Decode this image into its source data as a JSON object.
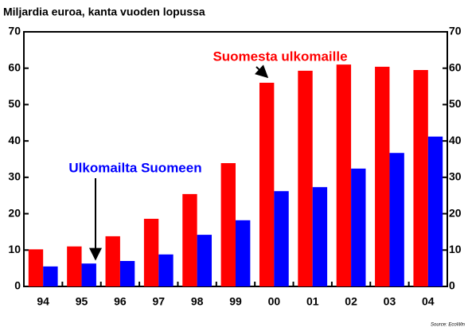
{
  "chart_data": {
    "type": "bar",
    "subtitle": "Miljardia euroa, kanta vuoden lopussa",
    "categories": [
      "94",
      "95",
      "96",
      "97",
      "98",
      "99",
      "00",
      "01",
      "02",
      "03",
      "04"
    ],
    "series": [
      {
        "name": "Suomesta ulkomaille",
        "color": "#ff0000",
        "values": [
          10.2,
          11,
          13.8,
          18.6,
          25.4,
          33.9,
          56,
          59.3,
          61,
          60.4,
          59.5
        ]
      },
      {
        "name": "Ulkomailta Suomeen",
        "color": "#0000ff",
        "values": [
          5.5,
          6.3,
          7,
          8.8,
          14.2,
          18.2,
          26.2,
          27.3,
          32.4,
          36.7,
          41.2
        ]
      }
    ],
    "ylim": [
      0,
      70
    ],
    "yticks": [
      0,
      10,
      20,
      30,
      40,
      50,
      60,
      70
    ],
    "y2lim": [
      0,
      70
    ],
    "y2ticks": [
      0,
      10,
      20,
      30,
      40,
      50,
      60,
      70
    ],
    "grid": false,
    "source": "Source: EcoWin"
  }
}
